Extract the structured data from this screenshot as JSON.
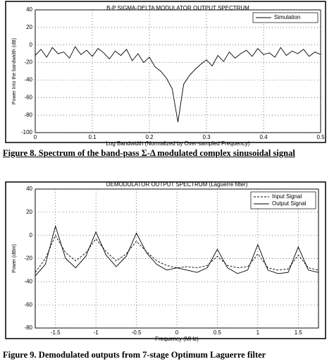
{
  "chart_data": [
    {
      "type": "line",
      "title": "B-P SIGMA-DELTA MODULATOR OUTPUT SPECTRUM",
      "xlabel": "Log Bandwidth (Normalized by Over-sampled Frequency)",
      "ylabel": "Power Into the bandwidth (dB)",
      "x": [
        0,
        0.01,
        0.02,
        0.03,
        0.04,
        0.05,
        0.06,
        0.07,
        0.08,
        0.09,
        0.1,
        0.11,
        0.12,
        0.13,
        0.14,
        0.15,
        0.16,
        0.17,
        0.18,
        0.19,
        0.2,
        0.21,
        0.22,
        0.23,
        0.24,
        0.25,
        0.26,
        0.27,
        0.28,
        0.29,
        0.3,
        0.31,
        0.32,
        0.33,
        0.34,
        0.35,
        0.36,
        0.37,
        0.38,
        0.39,
        0.4,
        0.41,
        0.42,
        0.43,
        0.44,
        0.45,
        0.46,
        0.47,
        0.48,
        0.49,
        0.5
      ],
      "series": [
        {
          "name": "Simulation",
          "color": "#000000",
          "style": "solid",
          "values": [
            -12,
            -5,
            -14,
            -3,
            -10,
            -8,
            -15,
            -2,
            -11,
            -6,
            -13,
            -4,
            -9,
            -16,
            -7,
            -12,
            -5,
            -18,
            -10,
            -20,
            -14,
            -25,
            -30,
            -38,
            -50,
            -88,
            -45,
            -35,
            -28,
            -22,
            -17,
            -24,
            -12,
            -19,
            -8,
            -15,
            -10,
            -6,
            -13,
            -4,
            -11,
            -9,
            -14,
            -3,
            -12,
            -7,
            -10,
            -5,
            -13,
            -8,
            -11
          ]
        }
      ],
      "xlim": [
        0,
        0.5
      ],
      "xticks": [
        0,
        0.1,
        0.2,
        0.3,
        0.4,
        0.5
      ],
      "ylim": [
        -100,
        40
      ],
      "yticks": [
        -100,
        -80,
        -60,
        -40,
        -20,
        0,
        20,
        40
      ],
      "grid": true,
      "legend": "top-right"
    },
    {
      "type": "line",
      "title": "DEMODULATOR OUTPUT SPECTRUM (Laguerre filter)",
      "xlabel": "Frequency (MHz)",
      "ylabel": "Power (dBm)",
      "x": [
        -1.75,
        -1.625,
        -1.5,
        -1.375,
        -1.25,
        -1.125,
        -1,
        -0.875,
        -0.75,
        -0.625,
        -0.5,
        -0.375,
        -0.25,
        -0.125,
        0,
        0.125,
        0.25,
        0.375,
        0.5,
        0.625,
        0.75,
        0.875,
        1,
        1.125,
        1.25,
        1.375,
        1.5,
        1.625,
        1.75
      ],
      "series": [
        {
          "name": "Input Signal",
          "color": "#000000",
          "style": "dashed",
          "values": [
            -32,
            -20,
            0,
            -15,
            -22,
            -15,
            -3,
            -14,
            -22,
            -16,
            -5,
            -14,
            -22,
            -26,
            -28,
            -27,
            -28,
            -26,
            -18,
            -26,
            -28,
            -27,
            -16,
            -28,
            -30,
            -29,
            -17,
            -28,
            -30
          ]
        },
        {
          "name": "Output Signal",
          "color": "#000000",
          "style": "solid",
          "values": [
            -35,
            -25,
            8,
            -20,
            -28,
            -18,
            3,
            -17,
            -27,
            -18,
            2,
            -15,
            -25,
            -30,
            -28,
            -30,
            -32,
            -28,
            -12,
            -28,
            -33,
            -30,
            -8,
            -30,
            -33,
            -32,
            -10,
            -30,
            -32
          ]
        }
      ],
      "xlim": [
        -1.75,
        1.75
      ],
      "xticks": [
        -1.5,
        -1,
        -0.5,
        0,
        0.5,
        1,
        1.5
      ],
      "ylim": [
        -80,
        40
      ],
      "yticks": [
        -80,
        -60,
        -40,
        -20,
        0,
        20,
        40
      ],
      "grid": true,
      "legend": "top-right"
    }
  ],
  "captions": [
    "Figure 8. Spectrum of the band-pass Σ-Δ modulated complex sinusoidal signal",
    "Figure 9. Demodulated outputs from 7-stage Optimum Laguerre filter"
  ]
}
